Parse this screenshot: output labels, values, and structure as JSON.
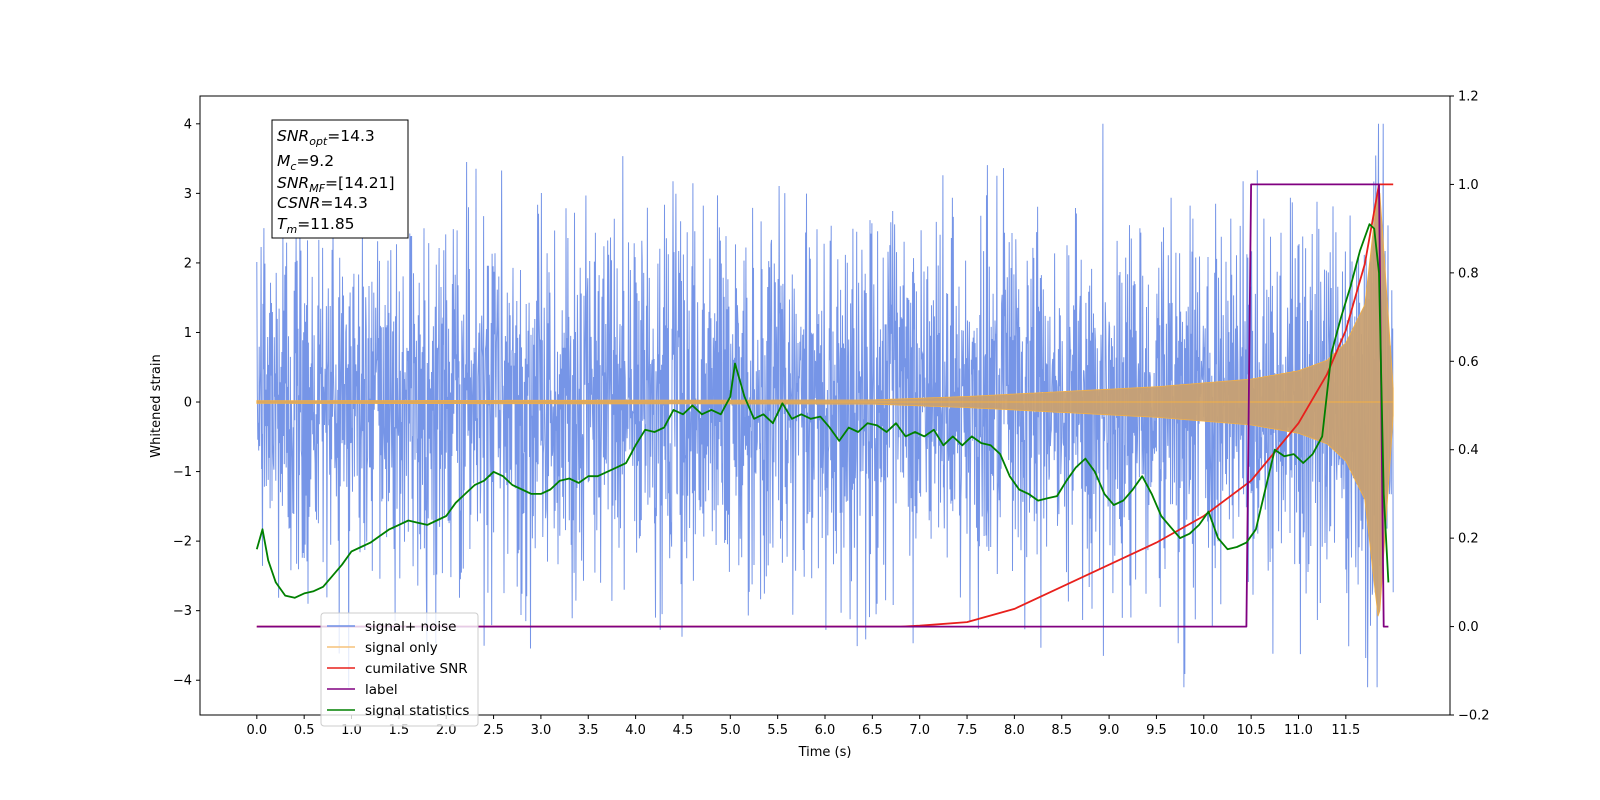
{
  "chart_data": {
    "type": "line",
    "xlabel": "Time (s)",
    "ylabel": "Whitened strain",
    "xlim": [
      -0.6,
      12.6
    ],
    "ylim": [
      -4.5,
      4.4
    ],
    "ylim_right": [
      -0.2,
      1.2
    ],
    "x_ticks": [
      "0.0",
      "0.5",
      "1.0",
      "1.5",
      "2.0",
      "2.5",
      "3.0",
      "3.5",
      "4.0",
      "4.5",
      "5.0",
      "5.5",
      "6.0",
      "6.5",
      "7.0",
      "7.5",
      "8.0",
      "8.5",
      "9.0",
      "9.5",
      "10.0",
      "10.5",
      "11.0",
      "11.5"
    ],
    "y_ticks_left": [
      "4",
      "3",
      "2",
      "1",
      "0",
      "−1",
      "−2",
      "−3",
      "−4"
    ],
    "y_ticks_right": [
      "1.2",
      "1.0",
      "0.8",
      "0.6",
      "0.4",
      "0.2",
      "0.0",
      "−0.2"
    ],
    "grid": false,
    "legend_position": "lower-left",
    "annotation": {
      "snr_opt_sym": "SNR",
      "snr_opt_sub": "opt",
      "snr_opt_val": "=14.3",
      "mc_sym": "M",
      "mc_sub": "c",
      "mc_val": "=9.2",
      "snr_mf_sym": "SNR",
      "snr_mf_sub": "MF",
      "snr_mf_val": "=[14.21]",
      "csnr_sym": "CSNR",
      "csnr_val": "=14.3",
      "tm_sym": "T",
      "tm_sub": "m",
      "tm_val": "=11.85"
    },
    "series": [
      {
        "name": "signal+ noise",
        "color": "#6f8fe6",
        "axis": "left",
        "description": "Gaussian-like noise spanning roughly -2.5 to 2.5 with spikes to about ±4, from t=0 to t=12"
      },
      {
        "name": "signal only",
        "color": "#f5b042",
        "axis": "left",
        "envelope_x": [
          0,
          6.5,
          7.5,
          8.5,
          9.5,
          10.5,
          11.0,
          11.3,
          11.5,
          11.7,
          11.85,
          12.0
        ],
        "envelope_y": [
          0.02,
          0.03,
          0.08,
          0.15,
          0.22,
          0.33,
          0.45,
          0.6,
          0.85,
          1.4,
          3.2,
          0.2
        ]
      },
      {
        "name": "cumilative SNR",
        "color": "#e8201c",
        "axis": "right",
        "x": [
          0,
          6.8,
          7.0,
          7.5,
          8.0,
          8.5,
          9.0,
          9.5,
          10.0,
          10.5,
          11.0,
          11.3,
          11.5,
          11.7,
          11.85,
          12.0
        ],
        "y": [
          0,
          0,
          0.002,
          0.01,
          0.04,
          0.09,
          0.14,
          0.19,
          0.25,
          0.33,
          0.46,
          0.57,
          0.67,
          0.82,
          1.0,
          1.0
        ]
      },
      {
        "name": "label",
        "color": "#800080",
        "axis": "right",
        "x": [
          0,
          10.45,
          10.5,
          11.85,
          11.9,
          11.95
        ],
        "y": [
          0,
          0,
          1,
          1,
          0,
          0
        ]
      },
      {
        "name": "signal statistics",
        "color": "#008000",
        "axis": "right",
        "x": [
          0.0,
          0.06,
          0.12,
          0.2,
          0.3,
          0.4,
          0.5,
          0.6,
          0.7,
          0.8,
          0.9,
          1.0,
          1.1,
          1.2,
          1.3,
          1.4,
          1.5,
          1.6,
          1.7,
          1.8,
          1.9,
          2.0,
          2.1,
          2.2,
          2.3,
          2.4,
          2.5,
          2.6,
          2.7,
          2.8,
          2.9,
          3.0,
          3.1,
          3.2,
          3.3,
          3.4,
          3.5,
          3.6,
          3.7,
          3.8,
          3.9,
          4.0,
          4.1,
          4.2,
          4.3,
          4.4,
          4.5,
          4.6,
          4.7,
          4.8,
          4.9,
          5.0,
          5.05,
          5.15,
          5.25,
          5.35,
          5.45,
          5.55,
          5.65,
          5.75,
          5.85,
          5.95,
          6.05,
          6.15,
          6.25,
          6.35,
          6.45,
          6.55,
          6.65,
          6.75,
          6.85,
          6.95,
          7.05,
          7.15,
          7.25,
          7.35,
          7.45,
          7.55,
          7.65,
          7.75,
          7.85,
          7.95,
          8.05,
          8.15,
          8.25,
          8.35,
          8.45,
          8.55,
          8.65,
          8.75,
          8.85,
          8.95,
          9.05,
          9.15,
          9.25,
          9.35,
          9.45,
          9.55,
          9.65,
          9.75,
          9.85,
          9.95,
          10.05,
          10.15,
          10.25,
          10.35,
          10.45,
          10.55,
          10.65,
          10.75,
          10.85,
          10.95,
          11.05,
          11.15,
          11.25,
          11.35,
          11.45,
          11.55,
          11.65,
          11.75,
          11.8,
          11.85,
          11.9,
          11.95
        ],
        "y": [
          0.175,
          0.22,
          0.15,
          0.1,
          0.07,
          0.065,
          0.075,
          0.08,
          0.09,
          0.115,
          0.14,
          0.17,
          0.18,
          0.19,
          0.205,
          0.22,
          0.23,
          0.24,
          0.235,
          0.23,
          0.24,
          0.25,
          0.28,
          0.3,
          0.32,
          0.33,
          0.35,
          0.34,
          0.32,
          0.31,
          0.3,
          0.3,
          0.31,
          0.33,
          0.335,
          0.325,
          0.34,
          0.34,
          0.35,
          0.36,
          0.37,
          0.41,
          0.445,
          0.44,
          0.45,
          0.49,
          0.48,
          0.5,
          0.48,
          0.49,
          0.48,
          0.52,
          0.595,
          0.52,
          0.47,
          0.48,
          0.46,
          0.505,
          0.47,
          0.48,
          0.47,
          0.475,
          0.45,
          0.42,
          0.45,
          0.44,
          0.46,
          0.455,
          0.44,
          0.46,
          0.43,
          0.44,
          0.43,
          0.445,
          0.41,
          0.43,
          0.41,
          0.43,
          0.415,
          0.41,
          0.39,
          0.34,
          0.31,
          0.3,
          0.285,
          0.29,
          0.295,
          0.33,
          0.36,
          0.38,
          0.35,
          0.3,
          0.275,
          0.285,
          0.31,
          0.34,
          0.3,
          0.25,
          0.225,
          0.2,
          0.21,
          0.23,
          0.26,
          0.2,
          0.175,
          0.18,
          0.19,
          0.22,
          0.31,
          0.4,
          0.385,
          0.39,
          0.37,
          0.39,
          0.43,
          0.62,
          0.7,
          0.77,
          0.85,
          0.91,
          0.9,
          0.8,
          0.3,
          0.1
        ]
      }
    ]
  },
  "legend": {
    "items": [
      {
        "label": "signal+ noise",
        "color": "#6f8fe6"
      },
      {
        "label": "signal only",
        "color": "#f5c27a"
      },
      {
        "label": "cumilative SNR",
        "color": "#e8201c"
      },
      {
        "label": "label",
        "color": "#800080"
      },
      {
        "label": "signal statistics",
        "color": "#008000"
      }
    ]
  }
}
